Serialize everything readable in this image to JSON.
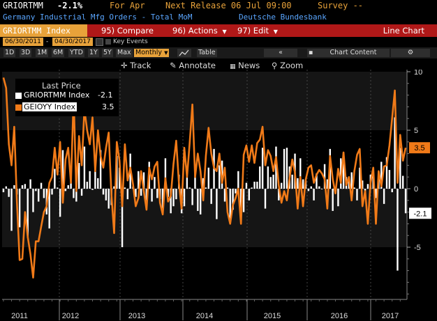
{
  "header": {
    "ticker": "GRIORTMM",
    "last_change": "-2.1%",
    "for_label": "For Apr",
    "next_release": "Next Release 06 Jul 09:00",
    "survey": "Survey --",
    "description": "Germany Industrial Mfg Orders - Total MoM",
    "source": "Deutsche Bundesbank"
  },
  "toolbar": {
    "security": "GRIORTMM Index",
    "compare": "95) Compare",
    "actions": "96) Actions",
    "edit": "97) Edit",
    "chart_type": "Line Chart"
  },
  "date_range": {
    "start": "06/30/2011",
    "end": "04/30/2017",
    "key_events": "Key Events"
  },
  "periods": [
    "1D",
    "3D",
    "1M",
    "6M",
    "YTD",
    "1Y",
    "5Y",
    "Max"
  ],
  "frequency": "Monthly",
  "table_label": "Table",
  "chart_content_label": "Chart Content",
  "tools": {
    "track": "Track",
    "annotate": "Annotate",
    "news": "News",
    "zoom": "Zoom"
  },
  "legend": {
    "title": "Last Price",
    "items": [
      {
        "name": "GRIORTMM Index",
        "value": "-2.1"
      },
      {
        "name": "GEIOYY Index",
        "value": "3.5"
      }
    ]
  },
  "colors": {
    "accent": "#e8a23a",
    "toolbar_red": "#b01818",
    "line": "#f07a18",
    "bar": "#ffffff",
    "desc_blue": "#5aa6ff"
  },
  "chart_data": {
    "type": "bar",
    "x_tick_labels": [
      "2011",
      "2012",
      "2013",
      "2014",
      "2015",
      "2016",
      "2017"
    ],
    "ylim": [
      -10,
      10
    ],
    "y_tick_labels": [
      "10",
      "5",
      "0",
      "-5"
    ],
    "last_value_labels": [
      "3.5",
      "-2.1"
    ],
    "series": [
      {
        "name": "GRIORTMM Index",
        "type": "bar",
        "values": [
          -0.3,
          0.2,
          -0.7,
          -3.6,
          0.3,
          -0.5,
          -3.3,
          0.3,
          0.4,
          -4.2,
          0.8,
          -2.0,
          -0.2,
          -1.1,
          0.5,
          -0.8,
          -2.2,
          -3.4,
          -0.5,
          1.7,
          0.1,
          -2.4,
          3.3,
          -0.2,
          0.3,
          0.6,
          -0.8,
          -1.1,
          2.2,
          -0.6,
          3.6,
          0.6,
          1.5,
          -0.1,
          2.3,
          0.9,
          3.3,
          -0.5,
          -1.0,
          -1.7,
          -1.4,
          0.2,
          2.8,
          1.8,
          -5.0,
          0.1,
          -0.9,
          3.0,
          0.2,
          -0.7,
          1.5,
          -0.6,
          1.4,
          -1.0,
          2.3,
          -1.1,
          1.0,
          -0.8,
          -0.9,
          -1.7,
          2.6,
          -0.7,
          -2.1,
          -1.5,
          -0.9,
          1.2,
          -2.1,
          -1.5,
          1.0,
          0.1,
          -1.4,
          1.6,
          -1.9,
          -2.2,
          0.9,
          0.1,
          1.8,
          -1.3,
          3.4,
          -2.6,
          2.0,
          2.4,
          -1.1,
          0.1,
          -2.7,
          -1.8,
          -0.4,
          1.5,
          -2.4,
          -2.0,
          0.5,
          -1.0,
          0.1,
          0.6,
          0.6,
          1.9,
          3.5,
          -1.7,
          1.9,
          1.0,
          1.2,
          3.6,
          -1.0,
          0.5,
          3.4,
          3.5,
          1.9,
          1.2,
          3.0,
          0.9,
          2.6,
          0.8,
          0.7,
          -0.2,
          0.2,
          -1.0,
          1.3,
          0.2,
          0.0,
          2.1,
          0.8,
          3.4,
          -1.9,
          0.0,
          -1.5,
          2.6,
          3.1,
          1.0,
          0.8,
          1.4,
          0.1,
          -1.0,
          1.8,
          0.7,
          -0.3,
          0.4,
          1.2,
          1.3,
          -0.8,
          1.3,
          2.3,
          -1.3,
          2.7,
          1.6,
          -0.3,
          6.1,
          -7.0,
          3.5,
          1.1,
          -2.1
        ],
        "color": "#ffffff"
      },
      {
        "name": "GEIOYY Index",
        "type": "line",
        "values": [
          9.5,
          8.6,
          3.8,
          2.0,
          5.3,
          -1.2,
          -6.1,
          -6.0,
          -2.0,
          -4.1,
          -5.6,
          -7.6,
          -4.5,
          -4.5,
          -3.2,
          -2.0,
          -1.5,
          0.5,
          1.0,
          3.5,
          1.2,
          4.0,
          -1.2,
          2.5,
          3.5,
          0.5,
          7.8,
          -0.2,
          4.5,
          2.0,
          6.8,
          5.0,
          3.8,
          6.1,
          1.5,
          5.0,
          2.8,
          1.8,
          3.5,
          4.8,
          -0.5,
          -3.8,
          4.0,
          2.4,
          -1.5,
          3.8,
          0.7,
          1.8,
          0.4,
          -1.5,
          -0.8,
          1.5,
          -0.2,
          -1.8,
          1.8,
          0.8,
          1.9,
          2.3,
          -1.2,
          -2.2,
          0.9,
          -1.1,
          -0.6,
          2.1,
          4.1,
          0.5,
          -1.7,
          3.5,
          1.0,
          3.9,
          7.2,
          1.0,
          3.0,
          1.5,
          -1.0,
          2.8,
          5.2,
          3.0,
          1.8,
          1.5,
          3.0,
          0.5,
          1.8,
          -2.0,
          -3.0,
          -1.4,
          -0.8,
          0.0,
          -3.0,
          2.9,
          3.7,
          2.3,
          3.7,
          2.2,
          3.9,
          4.2,
          5.3,
          2.0,
          3.3,
          2.8,
          1.5,
          2.7,
          0.3,
          -1.2,
          -0.2,
          -1.0,
          0.9,
          2.5,
          1.4,
          -1.7,
          1.0,
          -1.5,
          0.8,
          1.8,
          2.0,
          0.5,
          1.2,
          1.6,
          1.3,
          0.8,
          -1.7,
          2.8,
          0.8,
          -0.4,
          1.7,
          0.5,
          3.1,
          0.3,
          1.0,
          -1.0,
          1.5,
          2.9,
          3.4,
          -1.5,
          -0.2,
          -3.0,
          0.5,
          1.8,
          -3.0,
          1.5,
          0.2,
          1.9,
          2.0,
          3.7,
          6.0,
          8.4,
          0.5,
          4.6,
          2.4,
          3.5
        ],
        "color": "#f07a18"
      }
    ]
  }
}
